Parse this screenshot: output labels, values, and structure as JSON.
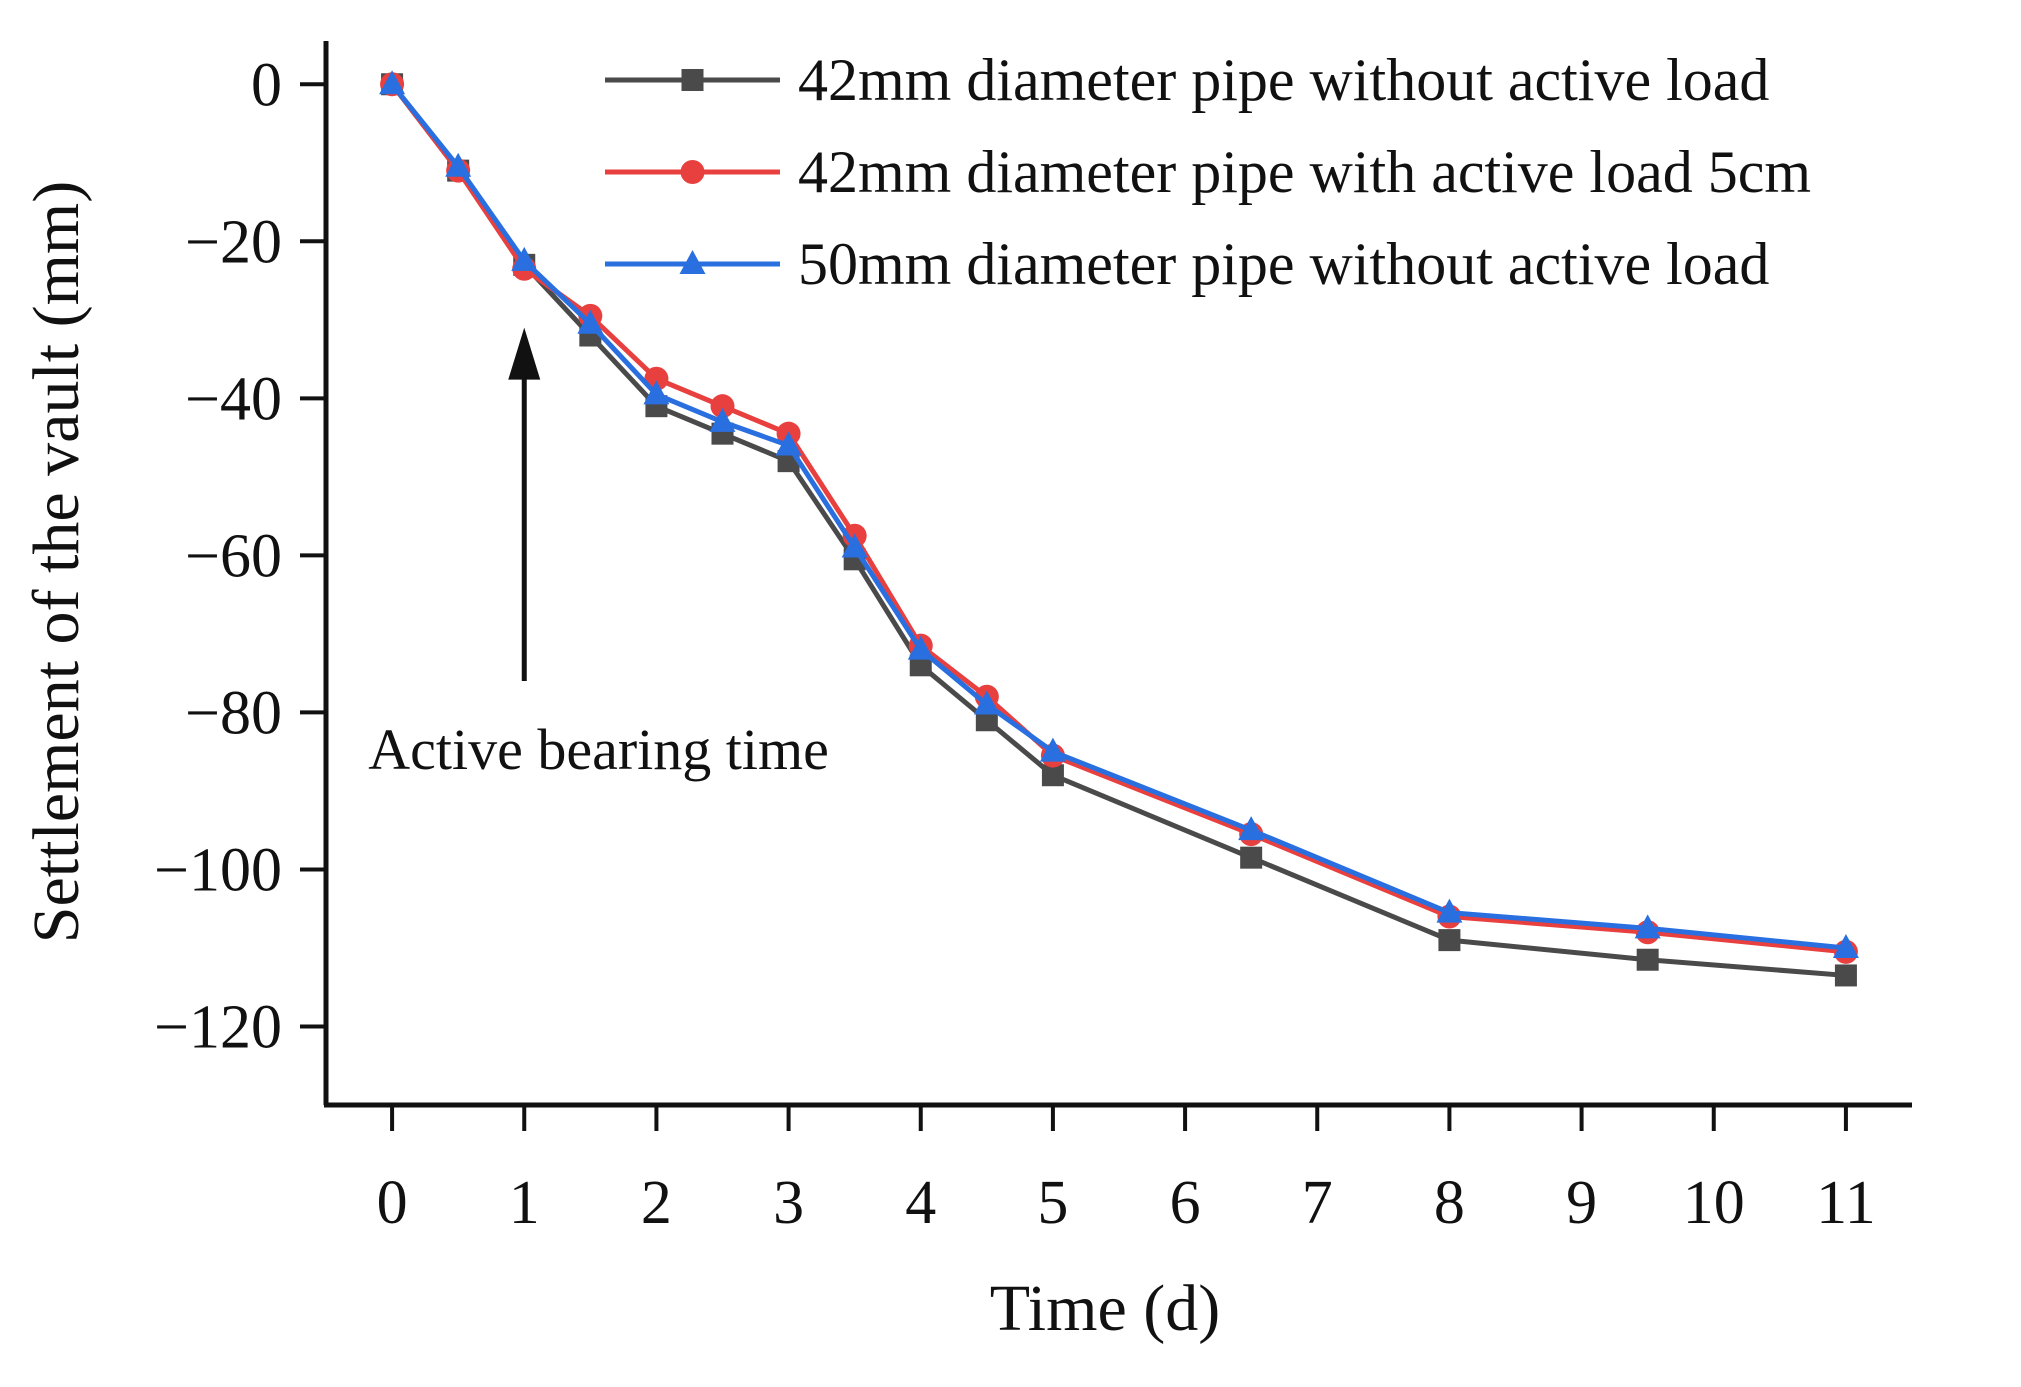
{
  "chart_data": {
    "type": "line",
    "title": "",
    "xlabel": "Time (d)",
    "ylabel": "Settlement of the vault (mm)",
    "xlim": [
      -0.5,
      11.5
    ],
    "ylim": [
      -130,
      5
    ],
    "xticks": [
      0,
      1,
      2,
      3,
      4,
      5,
      6,
      7,
      8,
      9,
      10,
      11
    ],
    "yticks": [
      0,
      -20,
      -40,
      -60,
      -80,
      -100,
      -120
    ],
    "xtick_labels": [
      "0",
      "1",
      "2",
      "3",
      "4",
      "5",
      "6",
      "7",
      "8",
      "9",
      "10",
      "11"
    ],
    "ytick_labels": [
      "0",
      "−20",
      "−40",
      "−60",
      "−80",
      "−100",
      "−120"
    ],
    "legend_position": "top-right",
    "series": [
      {
        "name": "42mm diameter pipe without active load",
        "color": "#4a4a4a",
        "marker": "square",
        "x": [
          0,
          0.5,
          1,
          1.5,
          2,
          2.5,
          3,
          3.5,
          4,
          4.5,
          5,
          6.5,
          8,
          9.5,
          11
        ],
        "values": [
          0,
          -11,
          -23,
          -32,
          -41,
          -44.5,
          -48,
          -60.5,
          -74,
          -81,
          -88,
          -98.5,
          -109,
          -111.5,
          -113.5
        ]
      },
      {
        "name": "42mm diameter pipe with active load 5cm",
        "color": "#e8403f",
        "marker": "circle",
        "x": [
          0,
          0.5,
          1,
          1.5,
          2,
          2.5,
          3,
          3.5,
          4,
          4.5,
          5,
          6.5,
          8,
          9.5,
          11
        ],
        "values": [
          0,
          -11,
          -23.5,
          -29.5,
          -37.5,
          -41,
          -44.5,
          -57.5,
          -71.5,
          -78,
          -85.5,
          -95.5,
          -106,
          -108,
          -110.5
        ]
      },
      {
        "name": "50mm diameter pipe without active load",
        "color": "#2a6fe0",
        "marker": "triangle",
        "x": [
          0,
          0.5,
          1,
          1.5,
          2,
          2.5,
          3,
          3.5,
          4,
          4.5,
          5,
          6.5,
          8,
          9.5,
          11
        ],
        "values": [
          0,
          -10.5,
          -22.5,
          -30.5,
          -39.5,
          -43,
          -46,
          -59,
          -72,
          -79,
          -85,
          -95,
          -105.5,
          -107.5,
          -110
        ]
      }
    ],
    "annotations": [
      {
        "text": "Active bearing time",
        "x": 1,
        "arrow_from_y": -76,
        "arrow_to_y": -31
      }
    ]
  }
}
